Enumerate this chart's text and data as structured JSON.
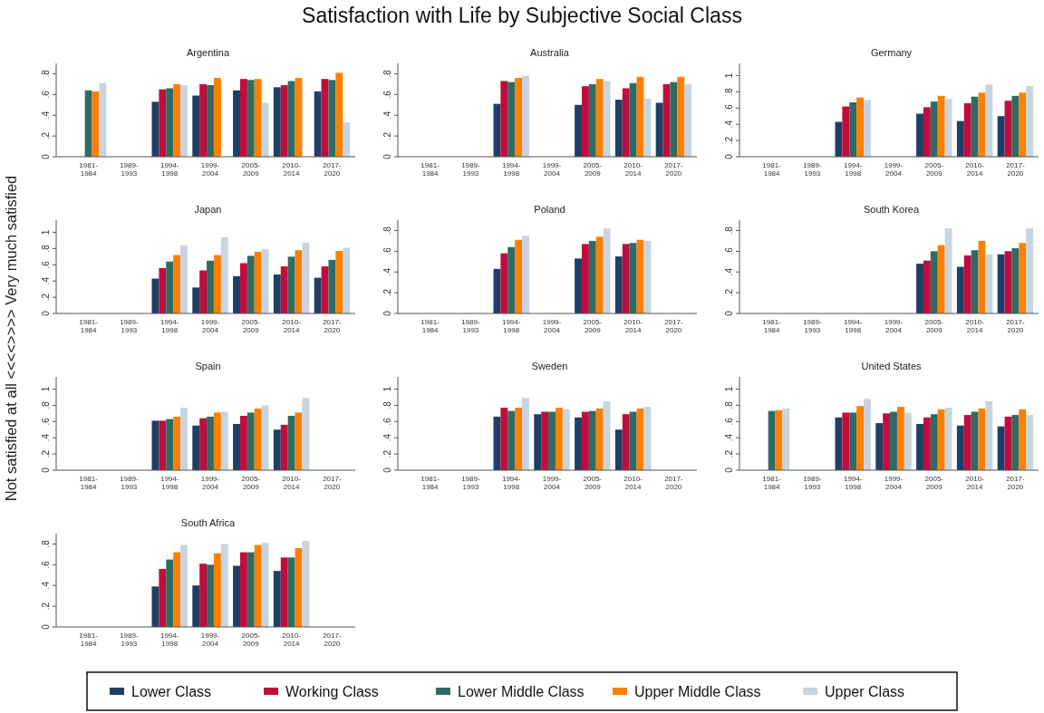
{
  "chart_data": [
    {
      "type": "bar",
      "title": "Argentina",
      "annotations": [
        "Satisfaction with Life by Subjective Social Class"
      ],
      "ylabel": "Not satisfied at all <<<<>>>> Very much satisfied",
      "legend": "bottom",
      "categories": [
        "1981-1984",
        "1989-1993",
        "1994-1998",
        "1999-2004",
        "2005-2009",
        "2010-2014",
        "2017-2020"
      ],
      "ylim": [
        0,
        0.9
      ],
      "yticks": [
        {
          "value": 0,
          "label": "0"
        },
        {
          "value": 0.2,
          "label": ".2"
        },
        {
          "value": 0.4,
          "label": ".4"
        },
        {
          "value": 0.6,
          "label": ".6"
        },
        {
          "value": 0.8,
          "label": ".8"
        }
      ],
      "series": [
        {
          "name": "Lower Class",
          "color": "#1f3f66",
          "values": [
            null,
            null,
            0.53,
            0.59,
            0.64,
            0.67,
            0.63
          ]
        },
        {
          "name": "Working Class",
          "color": "#c00d3d",
          "values": [
            null,
            null,
            0.65,
            0.7,
            0.75,
            0.69,
            0.75
          ]
        },
        {
          "name": "Lower Middle Class",
          "color": "#2f6b63",
          "values": [
            0.64,
            null,
            0.66,
            0.69,
            0.74,
            0.73,
            0.74
          ]
        },
        {
          "name": "Upper Middle Class",
          "color": "#ff8000",
          "values": [
            0.63,
            null,
            0.7,
            0.76,
            0.75,
            0.76,
            0.81
          ]
        },
        {
          "name": "Upper Class",
          "color": "#c8d4e0",
          "values": [
            0.71,
            null,
            0.69,
            null,
            0.52,
            null,
            0.33
          ]
        }
      ]
    },
    {
      "type": "bar",
      "title": "Australia",
      "categories": [
        "1981-1984",
        "1989-1993",
        "1994-1998",
        "1999-2004",
        "2005-2009",
        "2010-2014",
        "2017-2020"
      ],
      "ylim": [
        0,
        0.9
      ],
      "yticks": [
        {
          "value": 0,
          "label": "0"
        },
        {
          "value": 0.2,
          "label": ".2"
        },
        {
          "value": 0.4,
          "label": ".4"
        },
        {
          "value": 0.6,
          "label": ".6"
        },
        {
          "value": 0.8,
          "label": ".8"
        }
      ],
      "series": [
        {
          "name": "Lower Class",
          "color": "#1f3f66",
          "values": [
            null,
            null,
            0.51,
            null,
            0.5,
            0.55,
            0.52
          ]
        },
        {
          "name": "Working Class",
          "color": "#c00d3d",
          "values": [
            null,
            null,
            0.73,
            null,
            0.68,
            0.66,
            0.7
          ]
        },
        {
          "name": "Lower Middle Class",
          "color": "#2f6b63",
          "values": [
            null,
            null,
            0.72,
            null,
            0.7,
            0.71,
            0.72
          ]
        },
        {
          "name": "Upper Middle Class",
          "color": "#ff8000",
          "values": [
            null,
            null,
            0.76,
            null,
            0.75,
            0.77,
            0.77
          ]
        },
        {
          "name": "Upper Class",
          "color": "#c8d4e0",
          "values": [
            null,
            null,
            0.78,
            null,
            0.73,
            0.56,
            0.7
          ]
        }
      ]
    },
    {
      "type": "bar",
      "title": "Germany",
      "categories": [
        "1981-1984",
        "1989-1993",
        "1994-1998",
        "1999-2004",
        "2005-2009",
        "2010-2014",
        "2017-2020"
      ],
      "ylim": [
        0,
        1.15
      ],
      "yticks": [
        {
          "value": 0,
          "label": "0"
        },
        {
          "value": 0.2,
          "label": ".2"
        },
        {
          "value": 0.4,
          "label": ".4"
        },
        {
          "value": 0.6,
          "label": ".6"
        },
        {
          "value": 0.8,
          "label": ".8"
        },
        {
          "value": 1,
          "label": "1"
        }
      ],
      "series": [
        {
          "name": "Lower Class",
          "color": "#1f3f66",
          "values": [
            null,
            null,
            0.43,
            null,
            0.53,
            0.44,
            0.5
          ]
        },
        {
          "name": "Working Class",
          "color": "#c00d3d",
          "values": [
            null,
            null,
            0.62,
            null,
            0.61,
            0.66,
            0.69
          ]
        },
        {
          "name": "Lower Middle Class",
          "color": "#2f6b63",
          "values": [
            null,
            null,
            0.67,
            null,
            0.68,
            0.74,
            0.75
          ]
        },
        {
          "name": "Upper Middle Class",
          "color": "#ff8000",
          "values": [
            null,
            null,
            0.73,
            null,
            0.75,
            0.79,
            0.79
          ]
        },
        {
          "name": "Upper Class",
          "color": "#c8d4e0",
          "values": [
            null,
            null,
            0.7,
            null,
            0.71,
            0.89,
            0.87
          ]
        }
      ]
    },
    {
      "type": "bar",
      "title": "Japan",
      "categories": [
        "1981-1984",
        "1989-1993",
        "1994-1998",
        "1999-2004",
        "2005-2009",
        "2010-2014",
        "2017-2020"
      ],
      "ylim": [
        0,
        1.15
      ],
      "yticks": [
        {
          "value": 0,
          "label": "0"
        },
        {
          "value": 0.2,
          "label": ".2"
        },
        {
          "value": 0.4,
          "label": ".4"
        },
        {
          "value": 0.6,
          "label": ".6"
        },
        {
          "value": 0.8,
          "label": ".8"
        },
        {
          "value": 1,
          "label": "1"
        }
      ],
      "series": [
        {
          "name": "Lower Class",
          "color": "#1f3f66",
          "values": [
            null,
            null,
            0.43,
            0.32,
            0.46,
            0.48,
            0.44
          ]
        },
        {
          "name": "Working Class",
          "color": "#c00d3d",
          "values": [
            null,
            null,
            0.56,
            0.53,
            0.62,
            0.58,
            0.58
          ]
        },
        {
          "name": "Lower Middle Class",
          "color": "#2f6b63",
          "values": [
            null,
            null,
            0.64,
            0.65,
            0.71,
            0.7,
            0.66
          ]
        },
        {
          "name": "Upper Middle Class",
          "color": "#ff8000",
          "values": [
            null,
            null,
            0.72,
            0.72,
            0.76,
            0.78,
            0.77
          ]
        },
        {
          "name": "Upper Class",
          "color": "#c8d4e0",
          "values": [
            null,
            null,
            0.84,
            0.94,
            0.79,
            0.87,
            0.81
          ]
        }
      ]
    },
    {
      "type": "bar",
      "title": "Poland",
      "categories": [
        "1981-1984",
        "1989-1993",
        "1994-1998",
        "1999-2004",
        "2005-2009",
        "2010-2014",
        "2017-2020"
      ],
      "ylim": [
        0,
        0.9
      ],
      "yticks": [
        {
          "value": 0,
          "label": "0"
        },
        {
          "value": 0.2,
          "label": ".2"
        },
        {
          "value": 0.4,
          "label": ".4"
        },
        {
          "value": 0.6,
          "label": ".6"
        },
        {
          "value": 0.8,
          "label": ".8"
        }
      ],
      "series": [
        {
          "name": "Lower Class",
          "color": "#1f3f66",
          "values": [
            null,
            null,
            0.43,
            null,
            0.53,
            0.55,
            null
          ]
        },
        {
          "name": "Working Class",
          "color": "#c00d3d",
          "values": [
            null,
            null,
            0.58,
            null,
            0.67,
            0.67,
            null
          ]
        },
        {
          "name": "Lower Middle Class",
          "color": "#2f6b63",
          "values": [
            null,
            null,
            0.64,
            null,
            0.7,
            0.68,
            null
          ]
        },
        {
          "name": "Upper Middle Class",
          "color": "#ff8000",
          "values": [
            null,
            null,
            0.71,
            null,
            0.74,
            0.71,
            null
          ]
        },
        {
          "name": "Upper Class",
          "color": "#c8d4e0",
          "values": [
            null,
            null,
            0.75,
            null,
            0.82,
            0.7,
            null
          ]
        }
      ]
    },
    {
      "type": "bar",
      "title": "South Korea",
      "categories": [
        "1981-1984",
        "1989-1993",
        "1994-1998",
        "1999-2004",
        "2005-2009",
        "2010-2014",
        "2017-2020"
      ],
      "ylim": [
        0,
        0.9
      ],
      "yticks": [
        {
          "value": 0,
          "label": "0"
        },
        {
          "value": 0.2,
          "label": ".2"
        },
        {
          "value": 0.4,
          "label": ".4"
        },
        {
          "value": 0.6,
          "label": ".6"
        },
        {
          "value": 0.8,
          "label": ".8"
        }
      ],
      "series": [
        {
          "name": "Lower Class",
          "color": "#1f3f66",
          "values": [
            null,
            null,
            null,
            null,
            0.48,
            0.45,
            0.57
          ]
        },
        {
          "name": "Working Class",
          "color": "#c00d3d",
          "values": [
            null,
            null,
            null,
            null,
            0.51,
            0.56,
            0.6
          ]
        },
        {
          "name": "Lower Middle Class",
          "color": "#2f6b63",
          "values": [
            null,
            null,
            null,
            null,
            0.6,
            0.61,
            0.63
          ]
        },
        {
          "name": "Upper Middle Class",
          "color": "#ff8000",
          "values": [
            null,
            null,
            null,
            null,
            0.66,
            0.7,
            0.68
          ]
        },
        {
          "name": "Upper Class",
          "color": "#c8d4e0",
          "values": [
            null,
            null,
            null,
            null,
            0.82,
            0.57,
            0.82
          ]
        }
      ]
    },
    {
      "type": "bar",
      "title": "Spain",
      "categories": [
        "1981-1984",
        "1989-1993",
        "1994-1998",
        "1999-2004",
        "2005-2009",
        "2010-2014",
        "2017-2020"
      ],
      "ylim": [
        0,
        1.15
      ],
      "yticks": [
        {
          "value": 0,
          "label": "0"
        },
        {
          "value": 0.2,
          "label": ".2"
        },
        {
          "value": 0.4,
          "label": ".4"
        },
        {
          "value": 0.6,
          "label": ".6"
        },
        {
          "value": 0.8,
          "label": ".8"
        },
        {
          "value": 1,
          "label": "1"
        }
      ],
      "series": [
        {
          "name": "Lower Class",
          "color": "#1f3f66",
          "values": [
            null,
            null,
            0.61,
            0.55,
            0.57,
            0.5,
            null
          ]
        },
        {
          "name": "Working Class",
          "color": "#c00d3d",
          "values": [
            null,
            null,
            0.61,
            0.64,
            0.67,
            0.56,
            null
          ]
        },
        {
          "name": "Lower Middle Class",
          "color": "#2f6b63",
          "values": [
            null,
            null,
            0.63,
            0.66,
            0.71,
            0.67,
            null
          ]
        },
        {
          "name": "Upper Middle Class",
          "color": "#ff8000",
          "values": [
            null,
            null,
            0.66,
            0.71,
            0.76,
            0.71,
            null
          ]
        },
        {
          "name": "Upper Class",
          "color": "#c8d4e0",
          "values": [
            null,
            null,
            0.77,
            0.72,
            0.8,
            0.89,
            null
          ]
        }
      ]
    },
    {
      "type": "bar",
      "title": "Sweden",
      "categories": [
        "1981-1984",
        "1989-1993",
        "1994-1998",
        "1999-2004",
        "2005-2009",
        "2010-2014",
        "2017-2020"
      ],
      "ylim": [
        0,
        1.15
      ],
      "yticks": [
        {
          "value": 0,
          "label": "0"
        },
        {
          "value": 0.2,
          "label": ".2"
        },
        {
          "value": 0.4,
          "label": ".4"
        },
        {
          "value": 0.6,
          "label": ".6"
        },
        {
          "value": 0.8,
          "label": ".8"
        },
        {
          "value": 1,
          "label": "1"
        }
      ],
      "series": [
        {
          "name": "Lower Class",
          "color": "#1f3f66",
          "values": [
            null,
            null,
            0.66,
            0.69,
            0.65,
            0.5,
            null
          ]
        },
        {
          "name": "Working Class",
          "color": "#c00d3d",
          "values": [
            null,
            null,
            0.77,
            0.72,
            0.72,
            0.69,
            null
          ]
        },
        {
          "name": "Lower Middle Class",
          "color": "#2f6b63",
          "values": [
            null,
            null,
            0.73,
            0.72,
            0.73,
            0.72,
            null
          ]
        },
        {
          "name": "Upper Middle Class",
          "color": "#ff8000",
          "values": [
            null,
            null,
            0.77,
            0.77,
            0.76,
            0.76,
            null
          ]
        },
        {
          "name": "Upper Class",
          "color": "#c8d4e0",
          "values": [
            null,
            null,
            0.89,
            0.75,
            0.85,
            0.78,
            null
          ]
        }
      ]
    },
    {
      "type": "bar",
      "title": "United States",
      "categories": [
        "1981-1984",
        "1989-1993",
        "1994-1998",
        "1999-2004",
        "2005-2009",
        "2010-2014",
        "2017-2020"
      ],
      "ylim": [
        0,
        1.15
      ],
      "yticks": [
        {
          "value": 0,
          "label": "0"
        },
        {
          "value": 0.2,
          "label": ".2"
        },
        {
          "value": 0.4,
          "label": ".4"
        },
        {
          "value": 0.6,
          "label": ".6"
        },
        {
          "value": 0.8,
          "label": ".8"
        },
        {
          "value": 1,
          "label": "1"
        }
      ],
      "series": [
        {
          "name": "Lower Class",
          "color": "#1f3f66",
          "values": [
            null,
            null,
            0.65,
            0.58,
            0.57,
            0.55,
            0.54
          ]
        },
        {
          "name": "Working Class",
          "color": "#c00d3d",
          "values": [
            null,
            null,
            0.71,
            0.7,
            0.65,
            0.68,
            0.66
          ]
        },
        {
          "name": "Lower Middle Class",
          "color": "#2f6b63",
          "values": [
            0.73,
            null,
            0.71,
            0.72,
            0.69,
            0.72,
            0.68
          ]
        },
        {
          "name": "Upper Middle Class",
          "color": "#ff8000",
          "values": [
            0.74,
            null,
            0.79,
            0.78,
            0.75,
            0.76,
            0.75
          ]
        },
        {
          "name": "Upper Class",
          "color": "#c8d4e0",
          "values": [
            0.76,
            null,
            0.88,
            0.71,
            0.77,
            0.85,
            0.68
          ]
        }
      ]
    },
    {
      "type": "bar",
      "title": "South Africa",
      "categories": [
        "1981-1984",
        "1989-1993",
        "1994-1998",
        "1999-2004",
        "2005-2009",
        "2010-2014",
        "2017-2020"
      ],
      "ylim": [
        0,
        0.9
      ],
      "yticks": [
        {
          "value": 0,
          "label": "0"
        },
        {
          "value": 0.2,
          "label": ".2"
        },
        {
          "value": 0.4,
          "label": ".4"
        },
        {
          "value": 0.6,
          "label": ".6"
        },
        {
          "value": 0.8,
          "label": ".8"
        }
      ],
      "series": [
        {
          "name": "Lower Class",
          "color": "#1f3f66",
          "values": [
            null,
            null,
            0.39,
            0.4,
            0.59,
            0.54,
            null
          ]
        },
        {
          "name": "Working Class",
          "color": "#c00d3d",
          "values": [
            null,
            null,
            0.56,
            0.61,
            0.72,
            0.67,
            null
          ]
        },
        {
          "name": "Lower Middle Class",
          "color": "#2f6b63",
          "values": [
            null,
            null,
            0.65,
            0.6,
            0.72,
            0.67,
            null
          ]
        },
        {
          "name": "Upper Middle Class",
          "color": "#ff8000",
          "values": [
            null,
            null,
            0.72,
            0.71,
            0.79,
            0.76,
            null
          ]
        },
        {
          "name": "Upper Class",
          "color": "#c8d4e0",
          "values": [
            null,
            null,
            0.79,
            0.8,
            0.81,
            0.83,
            null
          ]
        }
      ]
    }
  ]
}
